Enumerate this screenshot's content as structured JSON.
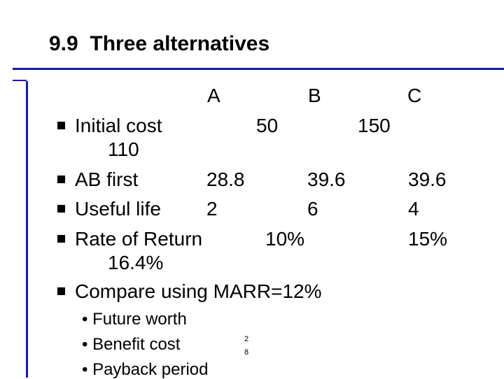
{
  "slide": {
    "title": "9.9  Three alternatives",
    "col_headers": {
      "a": "A",
      "b": "B",
      "c": "C"
    },
    "rows": [
      {
        "label": "Initial cost",
        "v1": "50",
        "v2": "150",
        "v3": "110"
      },
      {
        "label": "AB first",
        "v1": "28.8",
        "v2": "39.6",
        "v3": "39.6"
      },
      {
        "label": "Useful life",
        "v1": "2",
        "v2": "6",
        "v3": "4"
      },
      {
        "label": "Rate of Return",
        "v1": "10%",
        "v2": "15%",
        "v3": "16.4%"
      },
      {
        "label": "Compare using MARR=12%"
      }
    ],
    "sub_bullets": [
      "• Future worth",
      "• Benefit cost",
      "• Payback period"
    ],
    "page_number": {
      "line1": "2",
      "line2": "8"
    },
    "colors": {
      "accent_rule": "#1a1aa6"
    }
  }
}
